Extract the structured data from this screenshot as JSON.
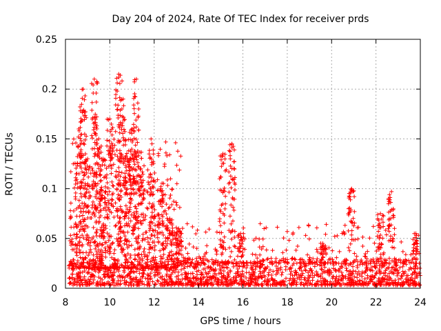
{
  "chart_data": {
    "type": "scatter",
    "title": "Day 204 of 2024, Rate Of TEC Index for receiver prds",
    "xlabel": "GPS time / hours",
    "ylabel": "ROTI / TECUs",
    "xlim": [
      8,
      24
    ],
    "ylim": [
      0,
      0.25
    ],
    "xticks": [
      8,
      10,
      12,
      14,
      16,
      18,
      20,
      22,
      24
    ],
    "xtick_labels": [
      "8",
      "10",
      "12",
      "14",
      "16",
      "18",
      "20",
      "22",
      "24"
    ],
    "yticks": [
      0,
      0.05,
      0.1,
      0.15,
      0.2,
      0.25
    ],
    "ytick_labels": [
      "0",
      "0.05",
      "0.1",
      "0.15",
      "0.2",
      "0.25"
    ],
    "grid": true,
    "marker": "+",
    "color": "#ff0000",
    "baseline_band": [
      0.003,
      0.03
    ],
    "highlights": [
      {
        "x": 8.6,
        "y": 0.16
      },
      {
        "x": 8.8,
        "y": 0.2
      },
      {
        "x": 9.0,
        "y": 0.13
      },
      {
        "x": 9.3,
        "y": 0.21
      },
      {
        "x": 9.5,
        "y": 0.15
      },
      {
        "x": 9.7,
        "y": 0.13
      },
      {
        "x": 10.0,
        "y": 0.17
      },
      {
        "x": 10.4,
        "y": 0.215
      },
      {
        "x": 10.6,
        "y": 0.19
      },
      {
        "x": 10.8,
        "y": 0.13
      },
      {
        "x": 11.0,
        "y": 0.16
      },
      {
        "x": 11.2,
        "y": 0.21
      },
      {
        "x": 11.4,
        "y": 0.12
      },
      {
        "x": 11.9,
        "y": 0.145
      },
      {
        "x": 12.3,
        "y": 0.1
      },
      {
        "x": 12.7,
        "y": 0.07
      },
      {
        "x": 13.1,
        "y": 0.06
      },
      {
        "x": 15.1,
        "y": 0.135
      },
      {
        "x": 15.5,
        "y": 0.145
      },
      {
        "x": 15.9,
        "y": 0.055
      },
      {
        "x": 19.6,
        "y": 0.045
      },
      {
        "x": 20.9,
        "y": 0.1
      },
      {
        "x": 22.2,
        "y": 0.075
      },
      {
        "x": 22.7,
        "y": 0.097
      },
      {
        "x": 23.8,
        "y": 0.055
      }
    ]
  }
}
